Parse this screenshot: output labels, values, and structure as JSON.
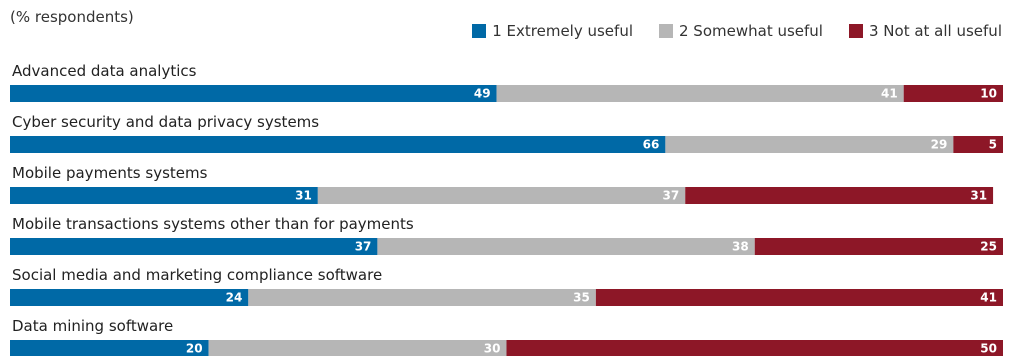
{
  "header": {
    "title_partial": "",
    "subtitle": "(% respondents)"
  },
  "legend": [
    {
      "label": "1 Extremely useful",
      "color": "#0069a6"
    },
    {
      "label": "2 Somewhat useful",
      "color": "#b6b6b6"
    },
    {
      "label": "3 Not at all useful",
      "color": "#8d1727"
    }
  ],
  "chart_data": {
    "type": "bar",
    "orientation": "horizontal",
    "stacked": true,
    "categories": [
      "Advanced data analytics",
      "Cyber security and data privacy systems",
      "Mobile payments systems",
      "Mobile transactions systems other than for payments",
      "Social media and marketing compliance software",
      "Data mining software"
    ],
    "series": [
      {
        "name": "1 Extremely useful",
        "color": "#0069a6",
        "values": [
          49,
          66,
          31,
          37,
          24,
          20
        ]
      },
      {
        "name": "2 Somewhat useful",
        "color": "#b6b6b6",
        "values": [
          41,
          29,
          37,
          38,
          35,
          30
        ]
      },
      {
        "name": "3 Not at all useful",
        "color": "#8d1727",
        "values": [
          10,
          5,
          31,
          25,
          41,
          50
        ]
      }
    ],
    "subtitle": "(% respondents)",
    "xlim": [
      0,
      100
    ],
    "grid": false,
    "legend_position": "top-right"
  }
}
